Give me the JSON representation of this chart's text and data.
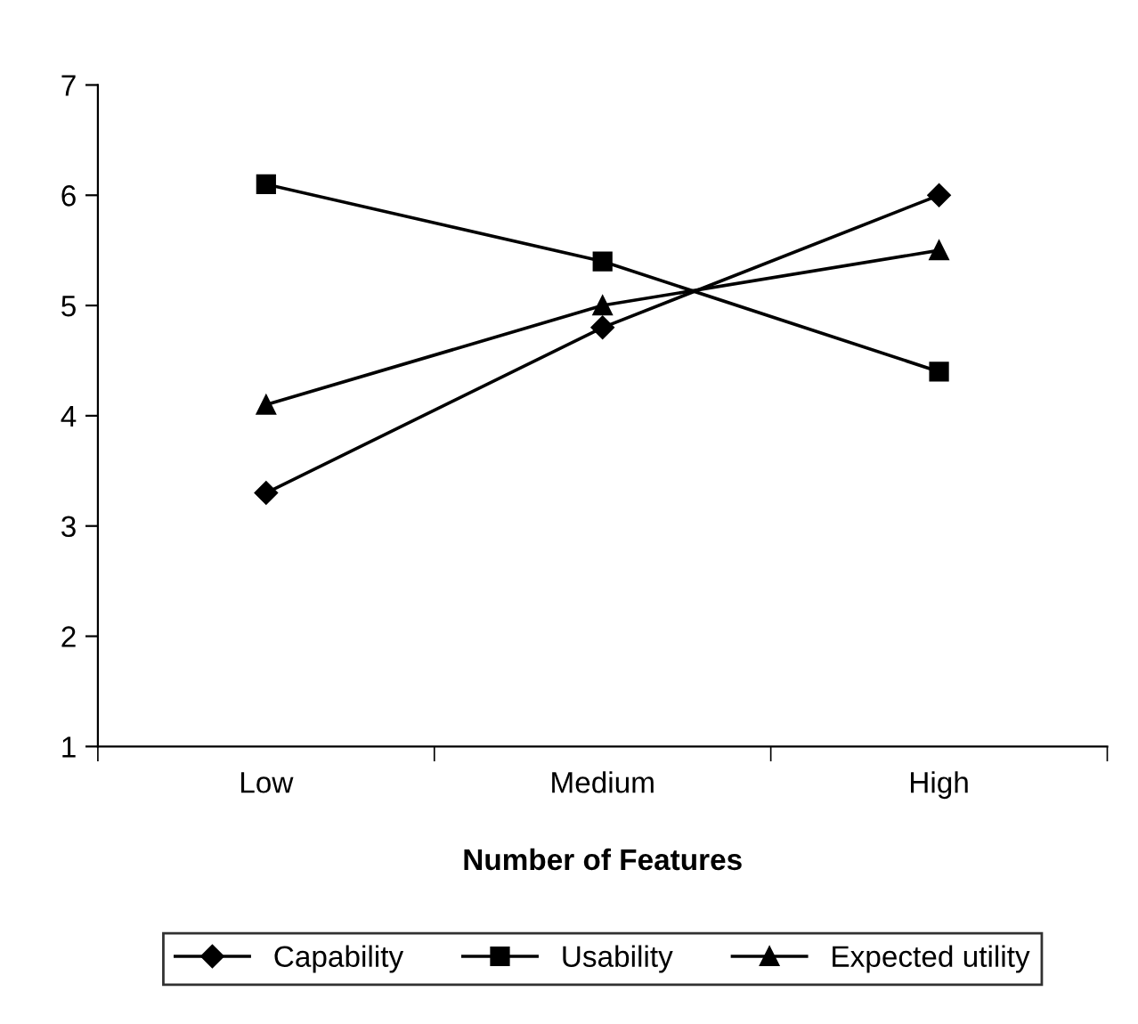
{
  "chart_data": {
    "type": "line",
    "xlabel": "Number of Features",
    "categories": [
      "Low",
      "Medium",
      "High"
    ],
    "series": [
      {
        "name": "Capability",
        "color": "#000000",
        "marker": "diamond",
        "values": [
          3.3,
          4.8,
          6.0
        ]
      },
      {
        "name": "Usability",
        "color": "#000000",
        "marker": "square",
        "values": [
          6.1,
          5.4,
          4.4
        ]
      },
      {
        "name": "Expected utility",
        "color": "#000000",
        "marker": "triangle",
        "values": [
          4.1,
          5.0,
          5.5
        ]
      }
    ],
    "ylim": [
      1,
      7
    ],
    "yticks": [
      1,
      2,
      3,
      4,
      5,
      6,
      7
    ],
    "grid": false,
    "legend": "bottom",
    "line_style": "solid"
  }
}
